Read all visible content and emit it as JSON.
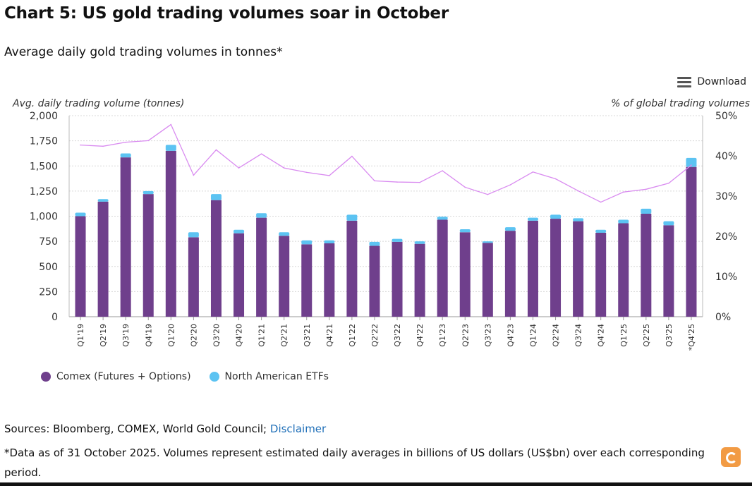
{
  "title": "Chart 5: US gold trading volumes soar in October",
  "subtitle": "Average daily gold trading volumes in tonnes*",
  "download_label": "Download",
  "colors": {
    "comex": "#6f3f8c",
    "etf": "#5cc3f2",
    "line": "#d98bf0",
    "grid": "#d8d8d8"
  },
  "chart_data": {
    "type": "bar",
    "stacked": true,
    "ylabel": "Avg. daily trading volume (tonnes)",
    "y2label": "% of global trading volumes",
    "ylim": [
      0,
      2000
    ],
    "yticks": [
      "0",
      "250",
      "500",
      "750",
      "1,000",
      "1,250",
      "1,500",
      "1,750",
      "2,000"
    ],
    "y2lim": [
      0,
      50
    ],
    "y2ticks": [
      "0%",
      "10%",
      "20%",
      "30%",
      "40%",
      "50%"
    ],
    "grid": true,
    "legend_placement": "bottom-left",
    "categories": [
      "Q1'19",
      "Q2'19",
      "Q3'19",
      "Q4'19",
      "Q1'20",
      "Q2'20",
      "Q3'20",
      "Q4'20",
      "Q1'21",
      "Q2'21",
      "Q3'21",
      "Q4'21",
      "Q1'22",
      "Q2'22",
      "Q3'22",
      "Q4'22",
      "Q1'23",
      "Q2'23",
      "Q3'23",
      "Q4'23",
      "Q1'24",
      "Q2'24",
      "Q3'24",
      "Q4'24",
      "Q1'25",
      "Q2'25",
      "Q3'25",
      "*Q4'25"
    ],
    "series": [
      {
        "name": "Comex (Futures + Options)",
        "kind": "bar",
        "values": [
          1000,
          1145,
          1585,
          1220,
          1650,
          790,
          1160,
          830,
          985,
          805,
          720,
          730,
          955,
          705,
          745,
          725,
          965,
          840,
          735,
          855,
          955,
          975,
          950,
          835,
          930,
          1025,
          910,
          1490
        ]
      },
      {
        "name": "North American ETFs",
        "kind": "bar",
        "values": [
          35,
          25,
          40,
          30,
          60,
          50,
          60,
          35,
          45,
          35,
          40,
          30,
          60,
          40,
          30,
          25,
          30,
          30,
          15,
          35,
          30,
          40,
          30,
          30,
          35,
          50,
          40,
          90
        ]
      },
      {
        "name": "",
        "kind": "line",
        "axis": "right",
        "values": [
          42.7,
          42.4,
          43.4,
          43.8,
          47.8,
          35.2,
          41.5,
          37.0,
          40.5,
          37.0,
          35.9,
          35.1,
          39.9,
          33.8,
          33.5,
          33.4,
          36.3,
          32.2,
          30.4,
          32.8,
          36.0,
          34.3,
          31.3,
          28.5,
          31.0,
          31.7,
          33.2,
          37.7
        ]
      }
    ]
  },
  "sources_text": "Sources: Bloomberg, COMEX, World Gold Council; ",
  "disclaimer_label": "Disclaimer",
  "note": "*Data as of 31 October 2025. Volumes represent estimated daily averages in billions of US dollars (US$bn) over each corresponding period."
}
